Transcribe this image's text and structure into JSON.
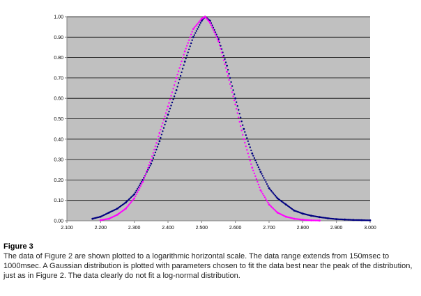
{
  "figure": {
    "title": "Figure 3",
    "caption": "The data of Figure 2 are shown plotted to a logarithmic horizontal scale. The data range extends from 150msec to 1000msec. A Gaussian distribution is plotted with parameters chosen to fit the data best near the peak of the distribution, just as in Figure 2. The data clearly do not fit a log-normal distribution."
  },
  "chart_data": {
    "type": "scatter",
    "xlim": [
      2.1,
      3.0
    ],
    "ylim": [
      0.0,
      1.0
    ],
    "x_ticks": [
      "2.100",
      "2.200",
      "2.300",
      "2.400",
      "2.500",
      "2.600",
      "2.700",
      "2.800",
      "2.900",
      "3.000"
    ],
    "y_ticks": [
      "0.00",
      "0.10",
      "0.20",
      "0.30",
      "0.40",
      "0.50",
      "0.60",
      "0.70",
      "0.80",
      "0.90",
      "1.00"
    ],
    "grid": true,
    "legend": "none",
    "plot_background": "#c0c0c0",
    "series": [
      {
        "color": "#000080",
        "x": [
          2.176,
          2.2,
          2.225,
          2.25,
          2.275,
          2.3,
          2.325,
          2.35,
          2.375,
          2.4,
          2.425,
          2.45,
          2.475,
          2.5,
          2.51,
          2.525,
          2.55,
          2.575,
          2.6,
          2.625,
          2.65,
          2.675,
          2.7,
          2.725,
          2.75,
          2.775,
          2.8,
          2.825,
          2.85,
          2.875,
          2.9,
          2.925,
          2.95,
          2.975,
          3.0
        ],
        "y": [
          0.01,
          0.02,
          0.04,
          0.06,
          0.09,
          0.13,
          0.2,
          0.28,
          0.39,
          0.52,
          0.64,
          0.78,
          0.9,
          0.98,
          1.0,
          0.98,
          0.89,
          0.76,
          0.6,
          0.45,
          0.33,
          0.24,
          0.16,
          0.11,
          0.08,
          0.05,
          0.035,
          0.025,
          0.018,
          0.012,
          0.008,
          0.006,
          0.004,
          0.003,
          0.002
        ]
      },
      {
        "color": "#ff00ff",
        "x": [
          2.2,
          2.225,
          2.25,
          2.275,
          2.3,
          2.325,
          2.35,
          2.375,
          2.4,
          2.425,
          2.45,
          2.475,
          2.5,
          2.51,
          2.525,
          2.55,
          2.575,
          2.6,
          2.625,
          2.65,
          2.675,
          2.7,
          2.725,
          2.75,
          2.775,
          2.8,
          2.825,
          2.85
        ],
        "y": [
          0.003,
          0.01,
          0.03,
          0.06,
          0.11,
          0.19,
          0.3,
          0.43,
          0.56,
          0.7,
          0.83,
          0.94,
          0.99,
          1.0,
          0.97,
          0.88,
          0.73,
          0.57,
          0.4,
          0.26,
          0.15,
          0.08,
          0.04,
          0.02,
          0.01,
          0.005,
          0.002,
          0.001
        ]
      }
    ]
  }
}
